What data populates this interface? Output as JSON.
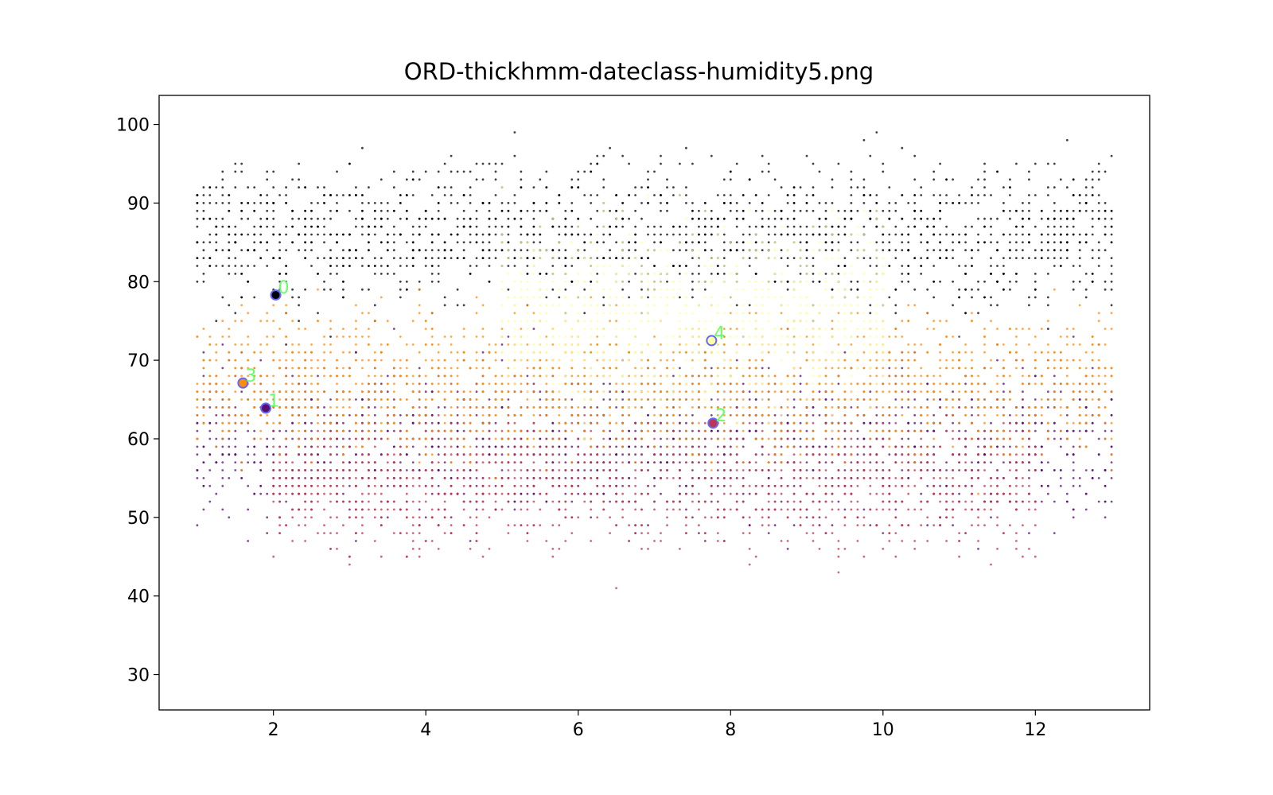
{
  "chart_data": {
    "type": "scatter",
    "title": "ORD-thickhmm-dateclass-humidity5.png",
    "xlabel": "",
    "ylabel": "",
    "xlim": [
      0.5,
      13.5
    ],
    "ylim": [
      25.5,
      103.7
    ],
    "x_ticks": [
      2,
      4,
      6,
      8,
      10,
      12
    ],
    "y_ticks": [
      30,
      40,
      50,
      60,
      70,
      80,
      90,
      100
    ],
    "grid": false,
    "legend": "none",
    "x_range": [
      1,
      13
    ],
    "y_range": [
      29,
      100
    ],
    "classes": [
      {
        "id": 0,
        "color": "#000004",
        "x_range": [
          1,
          13
        ],
        "y_center": 86,
        "y_spread": 6
      },
      {
        "id": 1,
        "color": "#57106e",
        "x_range": [
          1,
          13
        ],
        "y_center": 60,
        "y_spread": 7
      },
      {
        "id": 2,
        "color": "#bc3754",
        "x_range": [
          2,
          12
        ],
        "y_center": 55,
        "y_spread": 6
      },
      {
        "id": 3,
        "color": "#f98e09",
        "x_range": [
          1,
          13
        ],
        "y_center": 67,
        "y_spread": 6
      },
      {
        "id": 4,
        "color": "#fcffa4",
        "x_range": [
          5,
          10
        ],
        "y_center": 76,
        "y_spread": 8
      }
    ],
    "highlighted_points": [
      {
        "label": "0",
        "x": 2.03,
        "y": 78.3,
        "fill": "#000004"
      },
      {
        "label": "1",
        "x": 1.9,
        "y": 63.9,
        "fill": "#57106e"
      },
      {
        "label": "2",
        "x": 7.77,
        "y": 62.0,
        "fill": "#bc3754"
      },
      {
        "label": "3",
        "x": 1.6,
        "y": 67.1,
        "fill": "#f98e09"
      },
      {
        "label": "4",
        "x": 7.75,
        "y": 72.5,
        "fill": "#fcffa4"
      }
    ],
    "highlight_edge_color": "#6666ff",
    "highlight_label_color": "#66ff66"
  }
}
